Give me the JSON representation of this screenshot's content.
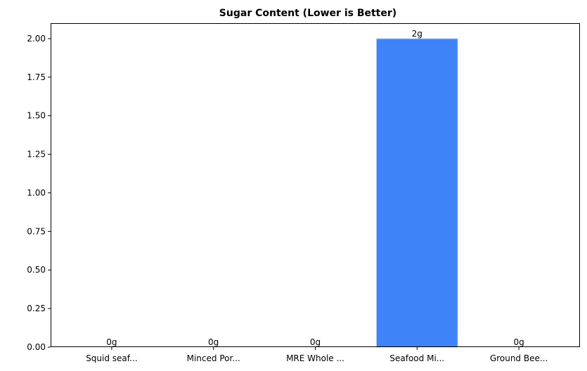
{
  "chart_data": {
    "type": "bar",
    "title": "Sugar Content (Lower is Better)",
    "xlabel": "",
    "ylabel": "",
    "categories": [
      "Squid seaf...",
      "Minced Por...",
      "MRE Whole ...",
      "Seafood Mi...",
      "Ground Bee..."
    ],
    "values": [
      0,
      0,
      0,
      2,
      0
    ],
    "data_labels": [
      "0g",
      "0g",
      "0g",
      "2g",
      "0g"
    ],
    "ylim": [
      0,
      2.1
    ],
    "yticks": [
      0.0,
      0.25,
      0.5,
      0.75,
      1.0,
      1.25,
      1.5,
      1.75,
      2.0
    ],
    "ytick_labels": [
      "0.00",
      "0.25",
      "0.50",
      "0.75",
      "1.00",
      "1.25",
      "1.50",
      "1.75",
      "2.00"
    ],
    "grid": false,
    "bar_color": "#3f83f8",
    "bar_edge_color": "#c9d8ee"
  }
}
